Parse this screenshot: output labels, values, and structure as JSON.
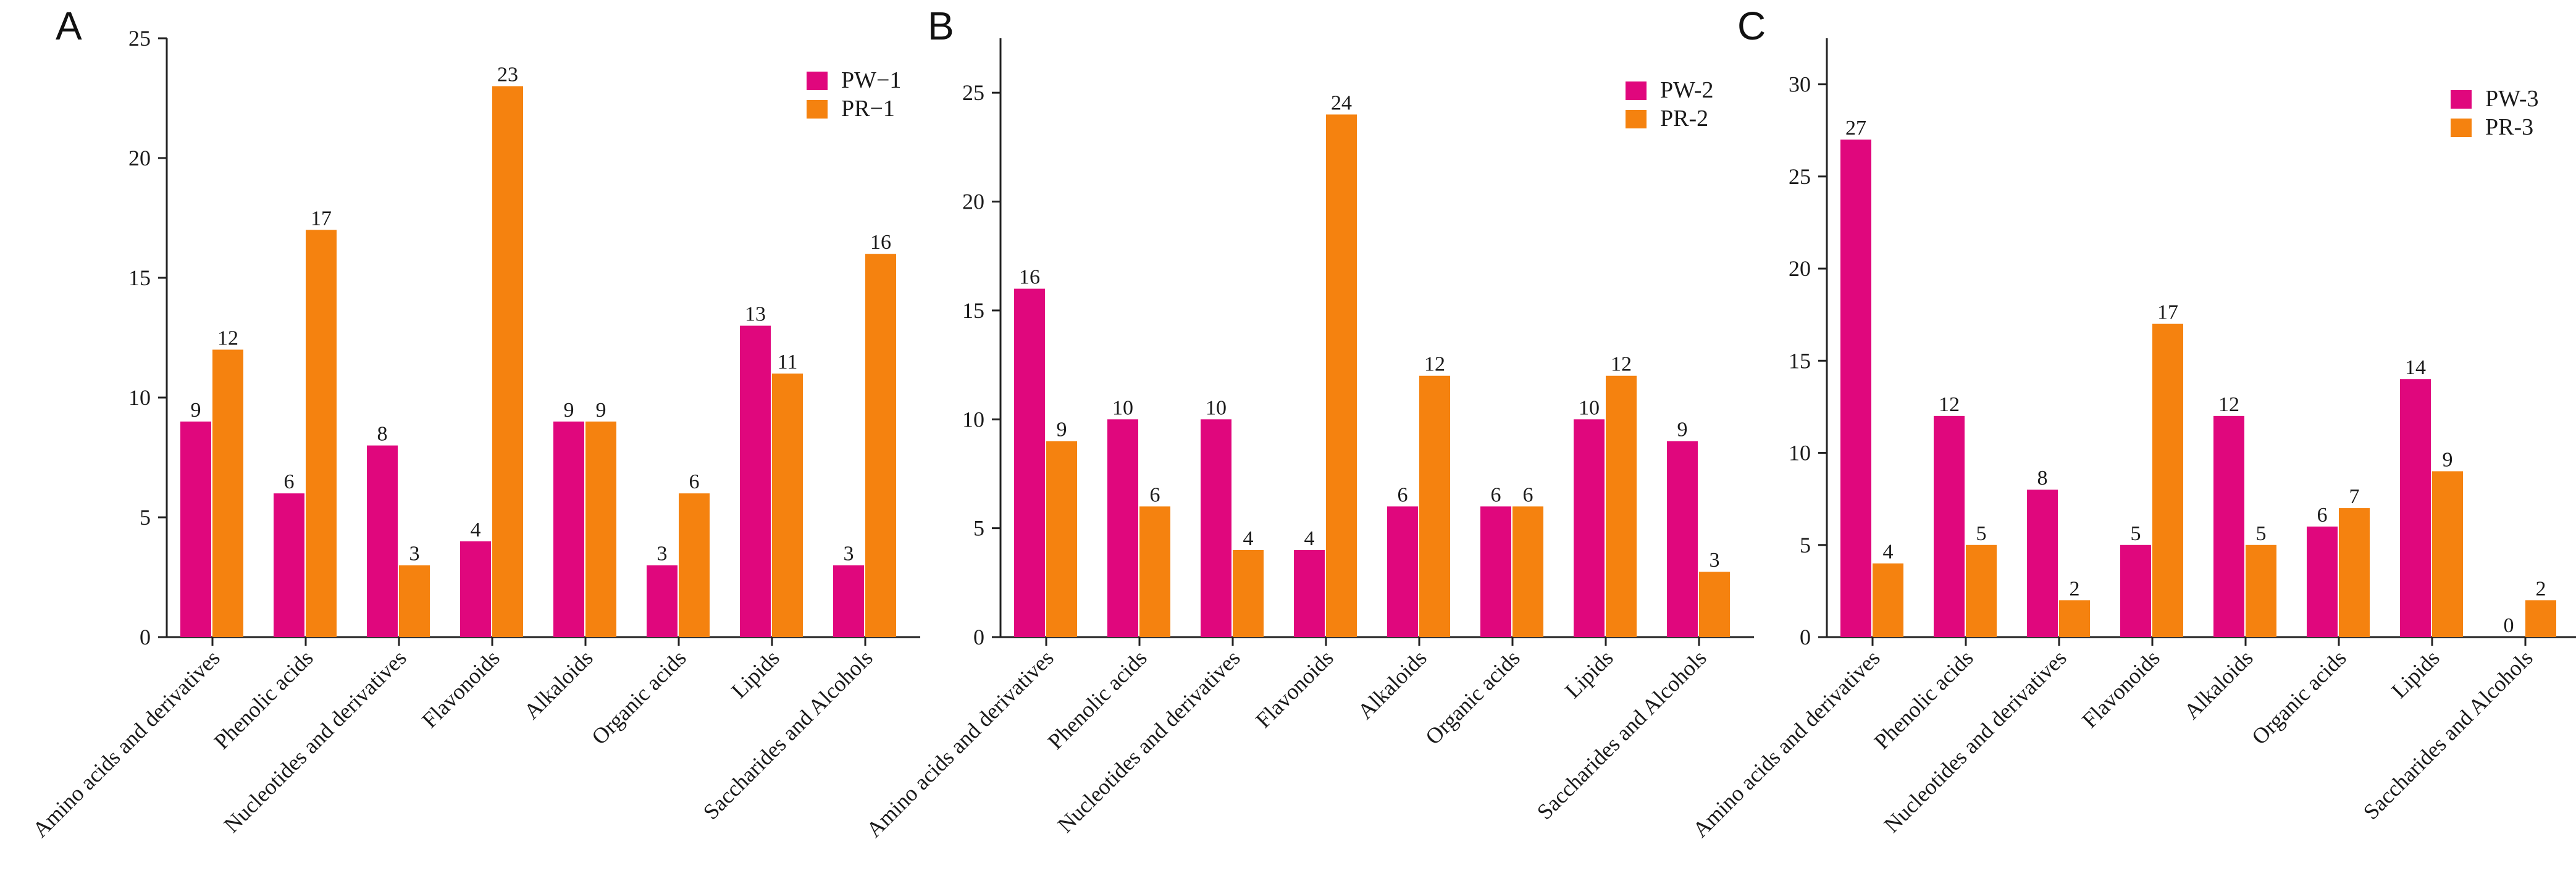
{
  "colors": {
    "pw": "#E0077D",
    "pr": "#F5820F",
    "axis": "#222222"
  },
  "chart_data": [
    {
      "type": "bar",
      "panel": "A",
      "categories": [
        "Amino acids and derivatives",
        "Phenolic acids",
        "Nucleotides and derivatives",
        "Flavonoids",
        "Alkaloids",
        "Organic acids",
        "Lipids",
        "Saccharides and Alcohols"
      ],
      "series": [
        {
          "name": "PW−1",
          "values": [
            9,
            6,
            8,
            4,
            9,
            3,
            13,
            3
          ]
        },
        {
          "name": "PR−1",
          "values": [
            12,
            17,
            3,
            23,
            9,
            6,
            11,
            16
          ]
        }
      ],
      "ylim": [
        0,
        25
      ],
      "yticks": [
        0,
        5,
        10,
        15,
        20,
        25
      ],
      "legend_position": "top-right"
    },
    {
      "type": "bar",
      "panel": "B",
      "categories": [
        "Amino acids and derivatives",
        "Phenolic acids",
        "Nucleotides and derivatives",
        "Flavonoids",
        "Alkaloids",
        "Organic acids",
        "Lipids",
        "Saccharides and Alcohols"
      ],
      "series": [
        {
          "name": "PW-2",
          "values": [
            16,
            10,
            10,
            4,
            6,
            6,
            10,
            9
          ]
        },
        {
          "name": "PR-2",
          "values": [
            9,
            6,
            4,
            24,
            12,
            6,
            12,
            3
          ]
        }
      ],
      "ylim": [
        0,
        27.5
      ],
      "yticks": [
        0,
        5,
        10,
        15,
        20,
        25
      ],
      "legend_position": "top-right"
    },
    {
      "type": "bar",
      "panel": "C",
      "categories": [
        "Amino acids and derivatives",
        "Phenolic acids",
        "Nucleotides and derivatives",
        "Flavonoids",
        "Alkaloids",
        "Organic acids",
        "Lipids",
        "Saccharides and Alcohols"
      ],
      "series": [
        {
          "name": "PW-3",
          "values": [
            27,
            12,
            8,
            5,
            12,
            6,
            14,
            0
          ]
        },
        {
          "name": "PR-3",
          "values": [
            4,
            5,
            2,
            17,
            5,
            7,
            9,
            2
          ]
        }
      ],
      "ylim": [
        0,
        32.5
      ],
      "yticks": [
        0,
        5,
        10,
        15,
        20,
        25,
        30
      ],
      "legend_position": "top-right"
    }
  ]
}
